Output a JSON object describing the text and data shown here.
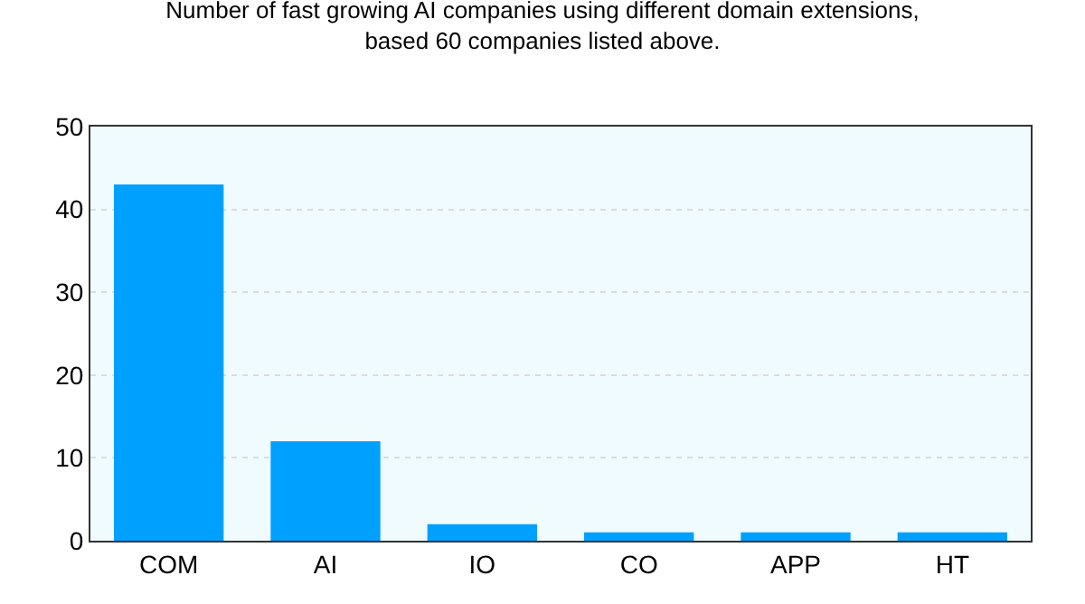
{
  "chart_data": {
    "type": "bar",
    "title": "Number of fast growing AI companies using different domain extensions,\nbased 60 companies listed above.",
    "categories": [
      "COM",
      "AI",
      "IO",
      "CO",
      "APP",
      "HT"
    ],
    "values": [
      43,
      12,
      2,
      1,
      1,
      1
    ],
    "color": "#00a0ff",
    "ylim": [
      0,
      50
    ],
    "yticks": [
      0,
      10,
      20,
      30,
      40,
      50
    ],
    "grid": "y"
  }
}
